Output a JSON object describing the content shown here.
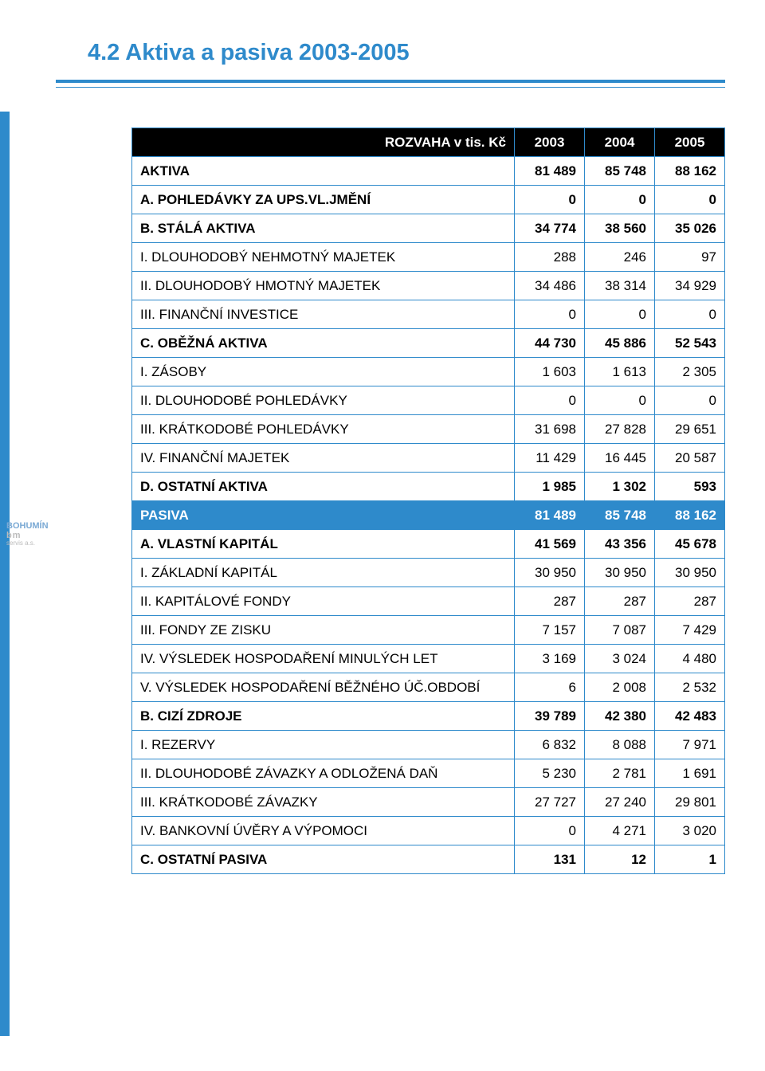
{
  "title": "4.2 Aktiva a pasiva 2003-2005",
  "logo": {
    "l1": "BOHUMÍN",
    "l2": "bm",
    "l3": "servis a.s."
  },
  "colors": {
    "accent": "#2e8acb",
    "header_bg": "#000000",
    "header_fg": "#ffffff",
    "section_bg": "#2e8acb",
    "section_fg": "#ffffff",
    "text": "#000000",
    "bg": "#ffffff"
  },
  "header": {
    "label": "ROZVAHA v tis. Kč",
    "c1": "2003",
    "c2": "2004",
    "c3": "2005"
  },
  "rows": [
    {
      "type": "bold",
      "label": "AKTIVA",
      "c1": "81 489",
      "c2": "85 748",
      "c3": "88 162"
    },
    {
      "type": "bold",
      "label": "A. POHLEDÁVKY ZA UPS.VL.JMĚNÍ",
      "c1": "0",
      "c2": "0",
      "c3": "0"
    },
    {
      "type": "bold",
      "label": "B. STÁLÁ AKTIVA",
      "c1": "34 774",
      "c2": "38 560",
      "c3": "35 026"
    },
    {
      "type": "normal",
      "label": "I. DLOUHODOBÝ NEHMOTNÝ MAJETEK",
      "c1": "288",
      "c2": "246",
      "c3": "97"
    },
    {
      "type": "normal",
      "label": "II. DLOUHODOBÝ HMOTNÝ MAJETEK",
      "c1": "34 486",
      "c2": "38 314",
      "c3": "34 929"
    },
    {
      "type": "normal",
      "label": "III. FINANČNÍ INVESTICE",
      "c1": "0",
      "c2": "0",
      "c3": "0"
    },
    {
      "type": "bold",
      "label": "C. OBĚŽNÁ AKTIVA",
      "c1": "44 730",
      "c2": "45 886",
      "c3": "52 543"
    },
    {
      "type": "normal",
      "label": "I. ZÁSOBY",
      "c1": "1 603",
      "c2": "1 613",
      "c3": "2 305"
    },
    {
      "type": "normal",
      "label": "II. DLOUHODOBÉ POHLEDÁVKY",
      "c1": "0",
      "c2": "0",
      "c3": "0"
    },
    {
      "type": "normal",
      "label": "III. KRÁTKODOBÉ POHLEDÁVKY",
      "c1": "31 698",
      "c2": "27 828",
      "c3": "29 651"
    },
    {
      "type": "normal",
      "label": "IV. FINANČNÍ MAJETEK",
      "c1": "11 429",
      "c2": "16 445",
      "c3": "20 587"
    },
    {
      "type": "bold",
      "label": "D. OSTATNÍ AKTIVA",
      "c1": "1 985",
      "c2": "1 302",
      "c3": "593"
    },
    {
      "type": "section",
      "label": "PASIVA",
      "c1": "81 489",
      "c2": "85 748",
      "c3": "88 162"
    },
    {
      "type": "bold",
      "label": "A. VLASTNÍ KAPITÁL",
      "c1": "41 569",
      "c2": "43 356",
      "c3": "45 678"
    },
    {
      "type": "normal",
      "label": "I. ZÁKLADNÍ KAPITÁL",
      "c1": "30 950",
      "c2": "30 950",
      "c3": "30 950"
    },
    {
      "type": "normal",
      "label": "II. KAPITÁLOVÉ FONDY",
      "c1": "287",
      "c2": "287",
      "c3": "287"
    },
    {
      "type": "normal",
      "label": "III. FONDY ZE ZISKU",
      "c1": "7 157",
      "c2": "7 087",
      "c3": "7 429"
    },
    {
      "type": "normal",
      "label": "IV. VÝSLEDEK HOSPODAŘENÍ MINULÝCH LET",
      "c1": "3 169",
      "c2": "3 024",
      "c3": "4 480"
    },
    {
      "type": "normal",
      "label": "V. VÝSLEDEK HOSPODAŘENÍ BĚŽNÉHO ÚČ.OBDOBÍ",
      "c1": "6",
      "c2": "2 008",
      "c3": "2 532"
    },
    {
      "type": "bold",
      "label": "B. CIZÍ ZDROJE",
      "c1": "39 789",
      "c2": "42 380",
      "c3": "42 483"
    },
    {
      "type": "normal",
      "label": "I. REZERVY",
      "c1": "6 832",
      "c2": "8 088",
      "c3": "7 971"
    },
    {
      "type": "normal",
      "label": "II. DLOUHODOBÉ ZÁVAZKY A ODLOŽENÁ DAŇ",
      "c1": "5 230",
      "c2": "2 781",
      "c3": "1 691"
    },
    {
      "type": "normal",
      "label": "III. KRÁTKODOBÉ ZÁVAZKY",
      "c1": "27 727",
      "c2": "27 240",
      "c3": "29 801"
    },
    {
      "type": "normal",
      "label": "IV. BANKOVNÍ ÚVĚRY A VÝPOMOCI",
      "c1": "0",
      "c2": "4 271",
      "c3": "3 020"
    },
    {
      "type": "bold",
      "label": "C. OSTATNÍ PASIVA",
      "c1": "131",
      "c2": "12",
      "c3": "1"
    }
  ]
}
